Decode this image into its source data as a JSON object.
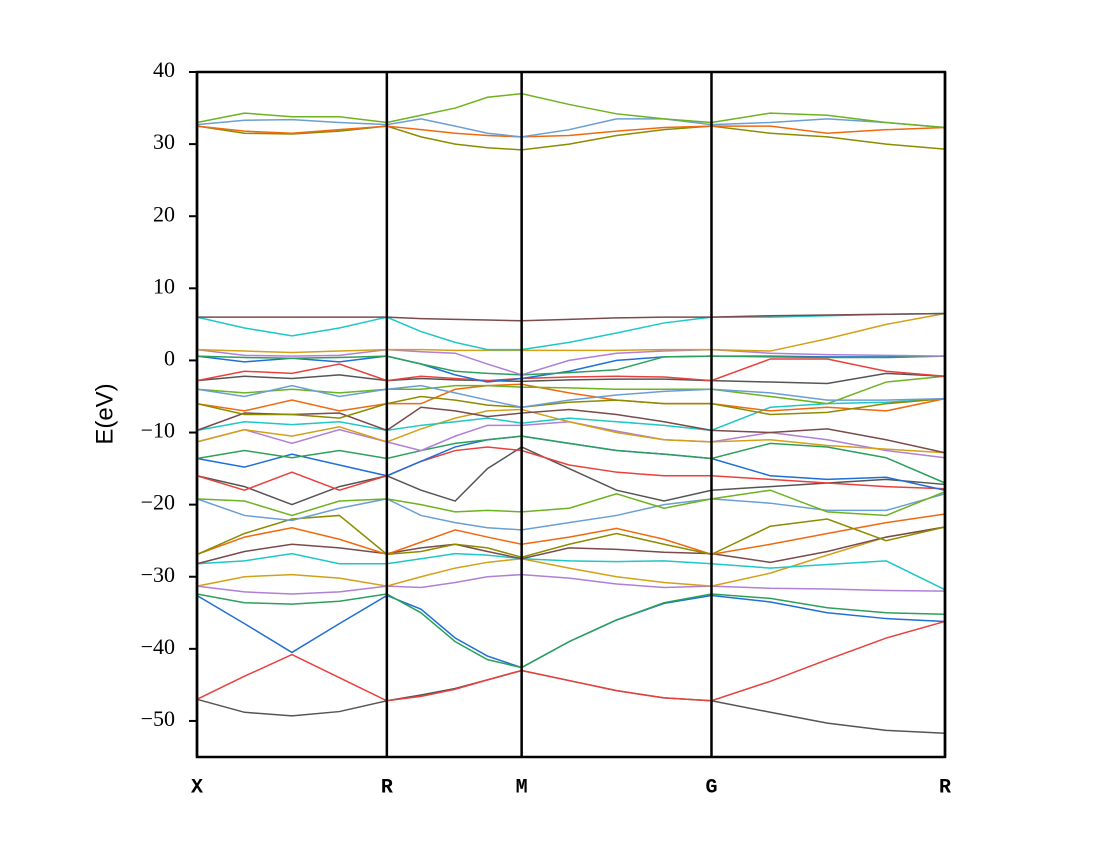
{
  "chart_data": {
    "type": "line",
    "ylabel": "E(eV)",
    "x": [
      0,
      0.25,
      0.5,
      0.75,
      1,
      1.18,
      1.36,
      1.53,
      1.71,
      1.96,
      2.21,
      2.46,
      2.71,
      3.02,
      3.32,
      3.63,
      3.94
    ],
    "xlim": [
      0,
      3.94
    ],
    "xticks": [
      {
        "value": 0,
        "label": "X"
      },
      {
        "value": 1,
        "label": "R"
      },
      {
        "value": 1.71,
        "label": "M"
      },
      {
        "value": 2.71,
        "label": "G"
      },
      {
        "value": 3.94,
        "label": "R"
      }
    ],
    "ylim": [
      -55,
      40
    ],
    "yticks": [
      {
        "value": -50,
        "label": "−50"
      },
      {
        "value": -40,
        "label": "−40"
      },
      {
        "value": -30,
        "label": "−30"
      },
      {
        "value": -20,
        "label": "−20"
      },
      {
        "value": -10,
        "label": "−10"
      },
      0,
      10,
      20,
      30,
      40
    ],
    "vertical_lines": true,
    "series": [
      {
        "color": "#555555",
        "values": [
          -47,
          -48.8,
          -49.3,
          -48.7,
          -47.2,
          -46.4,
          -45.5,
          -44.3,
          -43,
          -44.4,
          -45.8,
          -46.8,
          -47.2,
          -48.8,
          -50.3,
          -51.3,
          -51.7
        ]
      },
      {
        "color": "#e8413d",
        "values": [
          -47,
          -43.8,
          -40.8,
          -44,
          -47.2,
          -46.6,
          -45.6,
          -44.3,
          -43,
          -44.4,
          -45.8,
          -46.8,
          -47.2,
          -44.5,
          -41.5,
          -38.5,
          -36.2
        ]
      },
      {
        "color": "#1f6fd6",
        "values": [
          -32.6,
          -36.5,
          -40.5,
          -36.5,
          -32.6,
          -34.5,
          -38.5,
          -41,
          -42.6,
          -39,
          -36,
          -33.7,
          -32.6,
          -33.5,
          -35,
          -35.8,
          -36.2
        ]
      },
      {
        "color": "#2ca05a",
        "values": [
          -32.4,
          -33.6,
          -33.8,
          -33.4,
          -32.4,
          -35,
          -39,
          -41.5,
          -42.6,
          -39,
          -36,
          -33.6,
          -32.4,
          -33,
          -34.3,
          -35,
          -35.2
        ]
      },
      {
        "color": "#b07fd8",
        "values": [
          -31.3,
          -32.1,
          -32.4,
          -32.1,
          -31.3,
          -31.5,
          -30.8,
          -30,
          -29.7,
          -30.2,
          -31,
          -31.5,
          -31.3,
          -31.6,
          -31.7,
          -31.9,
          -32
        ]
      },
      {
        "color": "#d4a017",
        "values": [
          -31.3,
          -30,
          -29.7,
          -30.2,
          -31.3,
          -30,
          -28.8,
          -28,
          -27.5,
          -28.8,
          -30,
          -30.8,
          -31.3,
          -29.5,
          -27,
          -24.5,
          -23.1
        ]
      },
      {
        "color": "#1fc7c7",
        "values": [
          -28.2,
          -27.8,
          -26.8,
          -28.2,
          -28.2,
          -27.5,
          -26.8,
          -27,
          -27.5,
          -27.8,
          -27.9,
          -27.8,
          -28.2,
          -28.8,
          -28.3,
          -27.8,
          -31.8
        ]
      },
      {
        "color": "#7b4a4a",
        "values": [
          -28.2,
          -26.5,
          -25.5,
          -26,
          -26.8,
          -26,
          -25.5,
          -26.5,
          -27.5,
          -26,
          -26.2,
          -26.6,
          -26.8,
          -28,
          -26.5,
          -24.5,
          -23.1
        ]
      },
      {
        "color": "#f0690f",
        "values": [
          -26.9,
          -24.5,
          -23.2,
          -24.8,
          -26.9,
          -25.2,
          -23.5,
          -24.5,
          -25.5,
          -24.5,
          -23.3,
          -24.8,
          -26.9,
          -25.5,
          -24,
          -22.5,
          -21.3
        ]
      },
      {
        "color": "#8c8c00",
        "values": [
          -26.9,
          -24,
          -22,
          -21.5,
          -26.9,
          -26.5,
          -25.5,
          -26,
          -27.3,
          -25.5,
          -24,
          -25.5,
          -26.9,
          -23,
          -22,
          -25,
          -23.1
        ]
      },
      {
        "color": "#6a9fd4",
        "values": [
          -19.2,
          -21.5,
          -22.2,
          -20.5,
          -19.2,
          -21.5,
          -22.5,
          -23.2,
          -23.5,
          -22.5,
          -21.5,
          -20,
          -19.2,
          -19.8,
          -20.8,
          -20.8,
          -18.5
        ]
      },
      {
        "color": "#6db31f",
        "values": [
          -19.2,
          -19.5,
          -21.5,
          -19.5,
          -19.2,
          -20,
          -21,
          -20.8,
          -21,
          -20.5,
          -18.5,
          -20.5,
          -19.2,
          -18,
          -21,
          -21.5,
          -18.2
        ]
      },
      {
        "color": "#555555",
        "values": [
          -16,
          -17.5,
          -20,
          -17.5,
          -16,
          -18,
          -19.5,
          -15,
          -12,
          -15,
          -18,
          -19.5,
          -18,
          -17.5,
          -17,
          -16.5,
          -17.2
        ]
      },
      {
        "color": "#e8413d",
        "values": [
          -16,
          -18,
          -15.5,
          -18,
          -16,
          -14,
          -12.5,
          -12,
          -12.5,
          -14.5,
          -15.5,
          -16,
          -16,
          -16.5,
          -17,
          -17.5,
          -17.8
        ]
      },
      {
        "color": "#1f6fd6",
        "values": [
          -13.6,
          -14.8,
          -13,
          -14.5,
          -16,
          -14,
          -12,
          -11,
          -10.5,
          -11.5,
          -12.5,
          -13,
          -13.6,
          -16,
          -16.5,
          -16.2,
          -18
        ]
      },
      {
        "color": "#2ca05a",
        "values": [
          -13.6,
          -12.5,
          -13.5,
          -12.5,
          -13.6,
          -12.5,
          -11.5,
          -11,
          -10.5,
          -11.5,
          -12.5,
          -13,
          -13.6,
          -11.5,
          -12,
          -13.5,
          -17
        ]
      },
      {
        "color": "#b07fd8",
        "values": [
          -11.3,
          -9.6,
          -11.5,
          -9.6,
          -11.3,
          -12.5,
          -10.5,
          -9,
          -9,
          -8.5,
          -9.8,
          -11,
          -11.3,
          -10,
          -11,
          -12.5,
          -13.5
        ]
      },
      {
        "color": "#d4a017",
        "values": [
          -11.3,
          -9.6,
          -10.5,
          -9.2,
          -11.3,
          -9.5,
          -8,
          -7,
          -6.8,
          -8.5,
          -10,
          -11,
          -11.3,
          -11,
          -11.8,
          -12.3,
          -12.8
        ]
      },
      {
        "color": "#1fc7c7",
        "values": [
          -9.7,
          -8.5,
          -8.9,
          -8.5,
          -9.7,
          -9,
          -8.5,
          -8,
          -8.7,
          -8,
          -8.5,
          -9,
          -9.7,
          -6.5,
          -6,
          -5.8,
          -5.3
        ]
      },
      {
        "color": "#7b4a4a",
        "values": [
          -9.7,
          -7.3,
          -7.5,
          -7.3,
          -9.7,
          -6.5,
          -7,
          -7.8,
          -7.3,
          -6.8,
          -7.5,
          -8.5,
          -9.7,
          -10,
          -9.5,
          -11,
          -12.8
        ]
      },
      {
        "color": "#f0690f",
        "values": [
          -6,
          -7,
          -5.5,
          -7,
          -6,
          -6,
          -4,
          -3.5,
          -3.3,
          -4.5,
          -5.5,
          -6,
          -6,
          -7,
          -6.5,
          -7,
          -5.3
        ]
      },
      {
        "color": "#8c8c00",
        "values": [
          -6,
          -7.5,
          -7.5,
          -8,
          -6,
          -5,
          -5.5,
          -6.2,
          -6.5,
          -5.8,
          -5.5,
          -6,
          -6,
          -7.5,
          -7.2,
          -6,
          -5.3
        ]
      },
      {
        "color": "#6db31f",
        "values": [
          -4,
          -4.5,
          -4,
          -4.5,
          -4,
          -4,
          -3.5,
          -3.5,
          -3.7,
          -3.8,
          -4,
          -4,
          -4,
          -5,
          -6,
          -3,
          -2.2
        ]
      },
      {
        "color": "#6a9fd4",
        "values": [
          -4,
          -5,
          -3.5,
          -5,
          -4,
          -3.5,
          -4.5,
          -5.5,
          -6.5,
          -5.5,
          -4.8,
          -4.3,
          -4,
          -4.5,
          -5.5,
          -5.5,
          -5.3
        ]
      },
      {
        "color": "#555555",
        "values": [
          -2.8,
          -2.2,
          -2.5,
          -2,
          -2.8,
          -2.5,
          -2.7,
          -2.8,
          -2.9,
          -2.7,
          -2.6,
          -2.6,
          -2.8,
          -3,
          -3.2,
          -1.8,
          -2.2
        ]
      },
      {
        "color": "#e8413d",
        "values": [
          -2.8,
          -1.5,
          -1.8,
          -0.5,
          -2.8,
          -2.2,
          -2.5,
          -2.8,
          -2.5,
          -2.3,
          -2.2,
          -2.3,
          -2.8,
          0.2,
          0.2,
          -1.5,
          -2.2
        ]
      },
      {
        "color": "#1f6fd6",
        "values": [
          0.6,
          -0.2,
          0.3,
          -0.2,
          0.6,
          -0.5,
          -2,
          -3,
          -2.5,
          -1.5,
          0,
          0.5,
          0.6,
          0.6,
          0.5,
          0.5,
          0.6
        ]
      },
      {
        "color": "#2ca05a",
        "values": [
          0.6,
          0.4,
          0.3,
          0.4,
          0.6,
          -0.5,
          -1.5,
          -1.8,
          -2,
          -1.7,
          -1.3,
          0.5,
          0.6,
          0.5,
          0.4,
          0.4,
          0.6
        ]
      },
      {
        "color": "#b07fd8",
        "values": [
          1.5,
          0.7,
          0.6,
          0.7,
          1.5,
          1.2,
          1,
          -0.5,
          -2,
          0,
          1,
          1.3,
          1.5,
          1,
          0.8,
          0.7,
          0.6
        ]
      },
      {
        "color": "#d4a017",
        "values": [
          1.5,
          1.3,
          1.1,
          1.3,
          1.5,
          1.5,
          1.4,
          1.4,
          1.4,
          1.4,
          1.4,
          1.5,
          1.5,
          1.3,
          3,
          5,
          6.5
        ]
      },
      {
        "color": "#1fc7c7",
        "values": [
          6,
          4.5,
          3.4,
          4.5,
          6,
          4,
          2.5,
          1.5,
          1.5,
          2.5,
          3.8,
          5.2,
          6,
          6,
          6.2,
          6.4,
          6.5
        ]
      },
      {
        "color": "#7b4a4a",
        "values": [
          6,
          6,
          6,
          6,
          6,
          5.8,
          5.7,
          5.6,
          5.5,
          5.7,
          5.9,
          6,
          6,
          6.2,
          6.3,
          6.4,
          6.5
        ]
      },
      {
        "color": "#8c8c00",
        "values": [
          32.5,
          31.5,
          31.4,
          31.8,
          32.5,
          31,
          30,
          29.5,
          29.2,
          30,
          31.2,
          32,
          32.5,
          31.5,
          31,
          30,
          29.3
        ]
      },
      {
        "color": "#f0690f",
        "values": [
          32.5,
          31.8,
          31.5,
          32,
          32.5,
          32,
          31.5,
          31.2,
          31,
          31.2,
          31.8,
          32.3,
          32.5,
          32.5,
          31.5,
          32,
          32.3
        ]
      },
      {
        "color": "#6a9fd4",
        "values": [
          32.7,
          33.3,
          33.4,
          33,
          32.7,
          33.5,
          32.5,
          31.5,
          31,
          32,
          33.5,
          33.5,
          32.7,
          33,
          33.5,
          33,
          32.3
        ]
      },
      {
        "color": "#6db31f",
        "values": [
          33,
          34.3,
          33.8,
          33.8,
          33,
          34,
          35,
          36.5,
          37,
          35.5,
          34.2,
          33.5,
          33,
          34.3,
          34,
          33,
          32.3
        ]
      }
    ]
  }
}
